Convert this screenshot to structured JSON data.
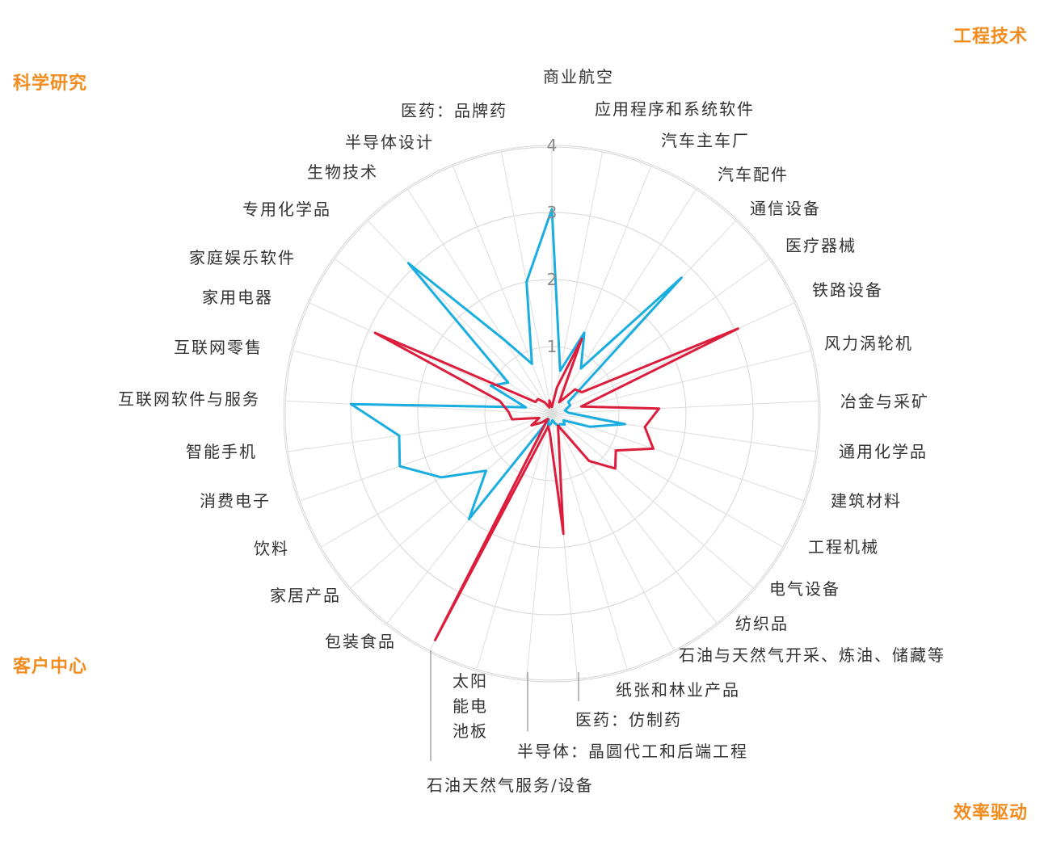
{
  "colors": {
    "accent": "#f28c1e",
    "series_blue": "#1aaee0",
    "series_red": "#dc1e3c",
    "grid": "#d6d6d6",
    "label": "#333333"
  },
  "quadrants": {
    "science": "科学研究",
    "engineering": "工程技术",
    "customer": "客户中心",
    "efficiency": "效率驱动"
  },
  "chart_data": {
    "type": "radar",
    "rmax": 4,
    "ticks": [
      "1",
      "2",
      "3",
      "4"
    ],
    "categories": [
      "商业航空",
      "应用程序和系统软件",
      "汽车主车厂",
      "汽车配件",
      "通信设备",
      "医疗器械",
      "铁路设备",
      "风力涡轮机",
      "冶金与采矿",
      "通用化学品",
      "建筑材料",
      "工程机械",
      "电气设备",
      "纺织品",
      "石油与天然气开采、炼油、储藏等",
      "纸张和林业产品",
      "医药：仿制药",
      "半导体：晶圆代工和后端工程",
      "石油天然气服务/设备",
      "太阳能电池板",
      "包装食品",
      "家居产品",
      "饮料",
      "消费电子",
      "智能手机",
      "互联网软件与服务",
      "互联网零售",
      "家用电器",
      "家庭娱乐软件",
      "专用化学品",
      "生物技术",
      "半导体设计",
      "医药：品牌药"
    ],
    "series": [
      {
        "values": [
          3.05,
          0.65,
          1.3,
          0.8,
          2.8,
          0.3,
          0.3,
          0.2,
          0.25,
          1.1,
          0.6,
          0.2,
          0.25,
          0.2,
          0.2,
          0.15,
          0.1,
          0.15,
          0.2,
          0.1,
          2.0,
          1.3,
          1.9,
          2.4,
          2.3,
          3.0,
          0.4,
          1.0,
          0.8,
          3.1,
          1.3,
          0.8,
          2.0
        ]
      },
      {
        "values": [
          0.1,
          0.4,
          1.2,
          0.2,
          0.5,
          0.55,
          3.05,
          0.45,
          1.6,
          1.4,
          1.6,
          1.1,
          1.25,
          0.9,
          0.2,
          0.35,
          1.8,
          0.3,
          0.2,
          3.8,
          0.1,
          0.2,
          0.35,
          0.2,
          0.6,
          0.65,
          0.8,
          2.9,
          0.3,
          0.3,
          0.2,
          0.1,
          0.2
        ]
      }
    ]
  }
}
